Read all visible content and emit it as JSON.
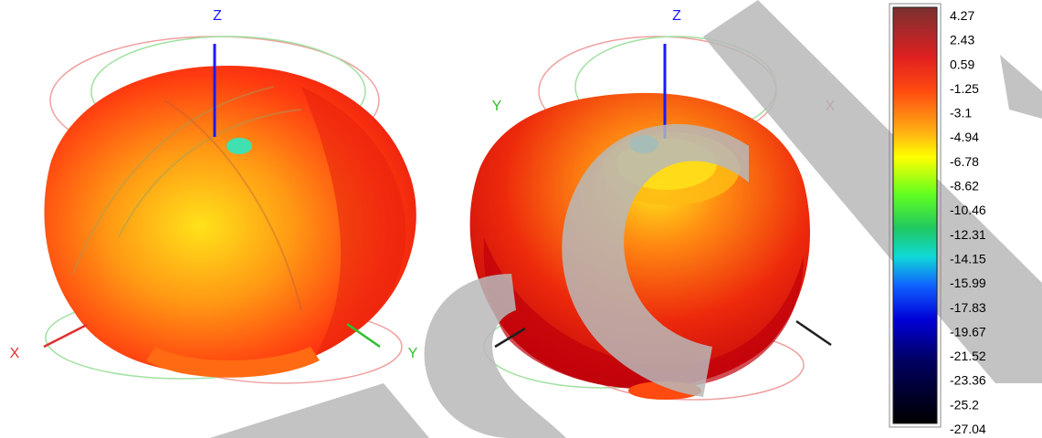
{
  "views": [
    {
      "axes": {
        "z": {
          "label": "Z",
          "color": "#1a1aff"
        },
        "x": {
          "label": "X",
          "color": "#e03030"
        },
        "y": {
          "label": "Y",
          "color": "#30c030"
        }
      }
    },
    {
      "axes": {
        "z": {
          "label": "Z",
          "color": "#1a1aff"
        },
        "x": {
          "label": "X",
          "color": "#e85050"
        },
        "y": {
          "label": "Y",
          "color": "#30c030"
        }
      }
    }
  ],
  "colorbar": {
    "ticks": [
      "4.27",
      "2.43",
      "0.59",
      "-1.25",
      "-3.1",
      "-4.94",
      "-6.78",
      "-8.62",
      "-10.46",
      "-12.31",
      "-14.15",
      "-15.99",
      "-17.83",
      "-19.67",
      "-21.52",
      "-23.36",
      "-25.2",
      "-27.04"
    ],
    "max": 4.27,
    "min": -27.04
  },
  "colors": {
    "pattern_main": "#ff3a10",
    "pattern_highlight": "#ffd21a",
    "pattern_dark": "#c8000a",
    "ring_pink": "#f08a8a",
    "ring_green": "#8ad88a",
    "watermark": "#b9b9b9"
  }
}
